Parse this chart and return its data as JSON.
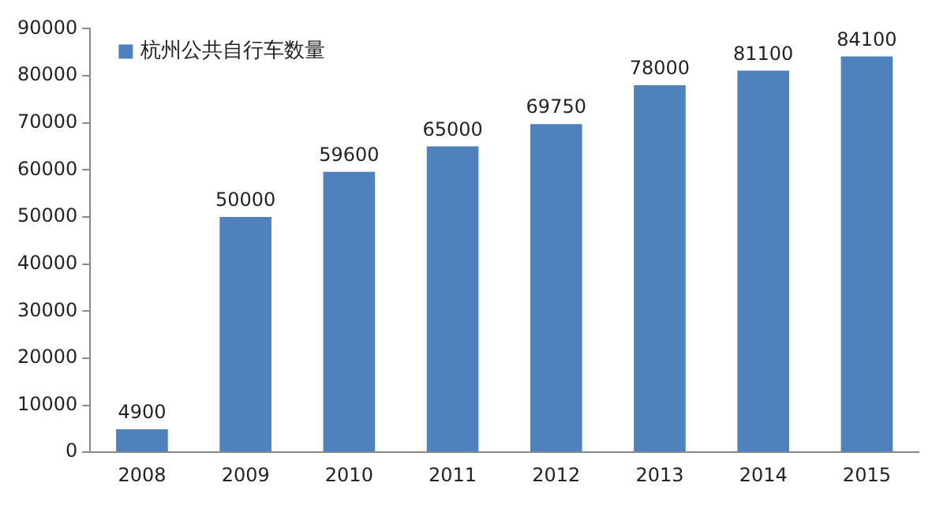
{
  "chart_data": {
    "type": "bar",
    "categories": [
      "2008",
      "2009",
      "2010",
      "2011",
      "2012",
      "2013",
      "2014",
      "2015"
    ],
    "series": [
      {
        "name": "杭州公共自行车数量",
        "color": "#4f81bd",
        "values": [
          4900,
          50000,
          59600,
          65000,
          69750,
          78000,
          81100,
          84100
        ]
      }
    ],
    "ylim": [
      0,
      90000
    ],
    "yticks": [
      0,
      10000,
      20000,
      30000,
      40000,
      50000,
      60000,
      70000,
      80000,
      90000
    ],
    "grid": false,
    "legend": "top left",
    "data_labels": true
  }
}
